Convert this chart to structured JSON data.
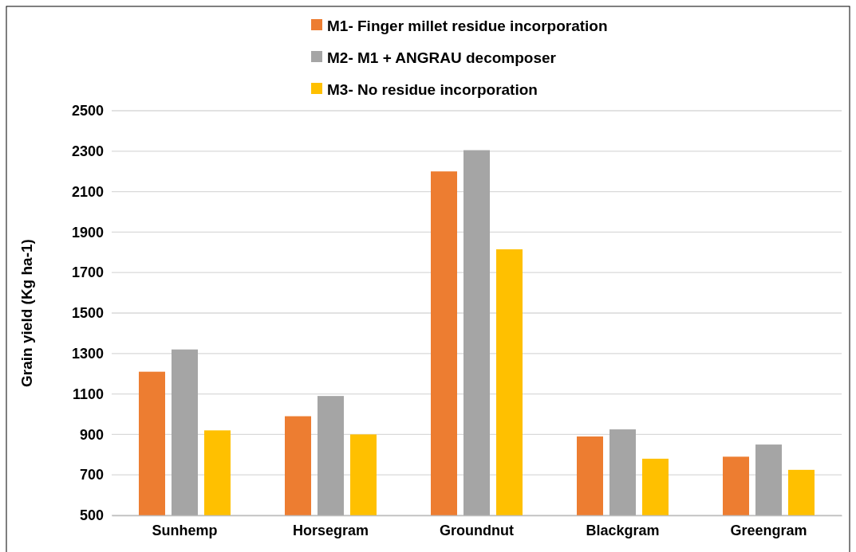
{
  "chart_data": {
    "type": "bar",
    "ylabel": "Grain yield (Kg ha-1)",
    "categories": [
      "Sunhemp",
      "Horsegram",
      "Groundnut",
      "Blackgram",
      "Greengram"
    ],
    "series": [
      {
        "name": "M1- Finger millet residue incorporation",
        "color": "#ed7d31",
        "values": [
          1210,
          990,
          2200,
          890,
          790
        ]
      },
      {
        "name": "M2- M1 + ANGRAU decomposer",
        "color": "#a5a5a5",
        "values": [
          1320,
          1090,
          2305,
          925,
          850
        ]
      },
      {
        "name": "M3- No residue incorporation",
        "color": "#ffc000",
        "values": [
          920,
          900,
          1815,
          780,
          725
        ]
      }
    ],
    "ylim": [
      500,
      2500
    ],
    "yticks": [
      500,
      700,
      900,
      1100,
      1300,
      1500,
      1700,
      1900,
      2100,
      2300,
      2500
    ],
    "grid": "y",
    "legend": "top"
  }
}
